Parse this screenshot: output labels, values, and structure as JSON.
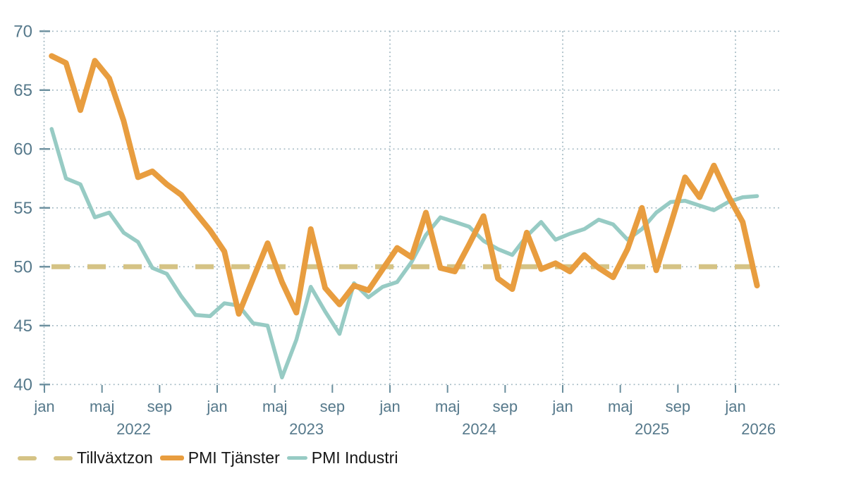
{
  "chart_data": {
    "type": "line",
    "title": "",
    "grid": "dotted",
    "legend_position": "bottom-left",
    "axis_color": "#56798B",
    "grid_color": "#9FB6C0",
    "tick_color": "#6B8F9E",
    "background": "#ffffff",
    "x": {
      "categories": [
        "jan 2022",
        "feb 2022",
        "mar 2022",
        "apr 2022",
        "maj 2022",
        "jun 2022",
        "jul 2022",
        "aug 2022",
        "sep 2022",
        "okt 2022",
        "nov 2022",
        "dec 2022",
        "jan 2023",
        "feb 2023",
        "mar 2023",
        "apr 2023",
        "maj 2023",
        "jun 2023",
        "jul 2023",
        "aug 2023",
        "sep 2023",
        "okt 2023",
        "nov 2023",
        "dec 2023",
        "jan 2024",
        "feb 2024",
        "mar 2024",
        "apr 2024",
        "maj 2024",
        "jun 2024",
        "jul 2024",
        "aug 2024",
        "sep 2024",
        "okt 2024",
        "nov 2024",
        "dec 2024",
        "jan 2025",
        "feb 2025",
        "mar 2025",
        "apr 2025",
        "maj 2025",
        "jun 2025",
        "jul 2025",
        "aug 2025",
        "sep 2025",
        "okt 2025",
        "nov 2025",
        "dec 2025",
        "jan 2026",
        "feb 2026"
      ],
      "ticks": [
        {
          "m": 0,
          "label": "jan"
        },
        {
          "m": 4,
          "label": "maj"
        },
        {
          "m": 8,
          "label": "sep"
        },
        {
          "m": 12,
          "label": "jan"
        },
        {
          "m": 16,
          "label": "maj"
        },
        {
          "m": 20,
          "label": "sep"
        },
        {
          "m": 24,
          "label": "jan"
        },
        {
          "m": 28,
          "label": "maj"
        },
        {
          "m": 32,
          "label": "sep"
        },
        {
          "m": 36,
          "label": "jan"
        },
        {
          "m": 40,
          "label": "maj"
        },
        {
          "m": 44,
          "label": "sep"
        },
        {
          "m": 48,
          "label": "jan"
        }
      ],
      "years": [
        {
          "m": 6.2,
          "label": "2022"
        },
        {
          "m": 18.2,
          "label": "2023"
        },
        {
          "m": 30.2,
          "label": "2024"
        },
        {
          "m": 42.2,
          "label": "2025"
        },
        {
          "m": 49.6,
          "label": "2026"
        }
      ]
    },
    "y": {
      "ticks": [
        40,
        45,
        50,
        55,
        60,
        65,
        70
      ],
      "lim": [
        40,
        70
      ]
    },
    "reference_line": {
      "name": "Tillväxtzon",
      "value": 50,
      "color": "#D5C385",
      "dash": [
        26,
        25
      ],
      "width": 7
    },
    "series": [
      {
        "name": "PMI Tjänster",
        "color": "#E89D3F",
        "width": 8,
        "values": [
          67.9,
          67.3,
          63.3,
          67.5,
          66.0,
          62.4,
          57.6,
          58.1,
          57.0,
          56.1,
          54.6,
          53.1,
          51.3,
          46.0,
          49.0,
          52.0,
          48.7,
          46.1,
          53.2,
          48.2,
          46.8,
          48.4,
          48.0,
          49.8,
          51.6,
          50.8,
          54.6,
          49.9,
          49.6,
          51.9,
          54.3,
          49.0,
          48.1,
          52.9,
          49.8,
          50.3,
          49.6,
          51.0,
          49.9,
          49.1,
          51.5,
          55.0,
          49.7,
          53.6,
          57.6,
          55.9,
          58.6,
          56.0,
          53.8,
          48.4
        ]
      },
      {
        "name": "PMI Industri",
        "color": "#97CBC4",
        "width": 5.5,
        "values": [
          61.7,
          57.5,
          57.0,
          54.2,
          54.6,
          52.9,
          52.1,
          49.9,
          49.4,
          47.5,
          45.9,
          45.8,
          46.9,
          46.7,
          45.2,
          45.0,
          40.6,
          43.8,
          48.3,
          46.2,
          44.3,
          48.6,
          47.4,
          48.3,
          48.7,
          50.4,
          52.7,
          54.2,
          53.8,
          53.4,
          52.2,
          51.5,
          51.0,
          52.6,
          53.8,
          52.3,
          52.8,
          53.2,
          54.0,
          53.6,
          52.3,
          53.2,
          54.6,
          55.5,
          55.6,
          55.2,
          54.8,
          55.5,
          55.9,
          56.0
        ]
      }
    ],
    "legend": [
      {
        "label": "Tillväxtzon",
        "color": "#D5C385",
        "marker": "dashed-line"
      },
      {
        "label": "PMI Tjänster",
        "color": "#E89D3F",
        "marker": "line"
      },
      {
        "label": "PMI Industri",
        "color": "#97CBC4",
        "marker": "line"
      }
    ]
  }
}
